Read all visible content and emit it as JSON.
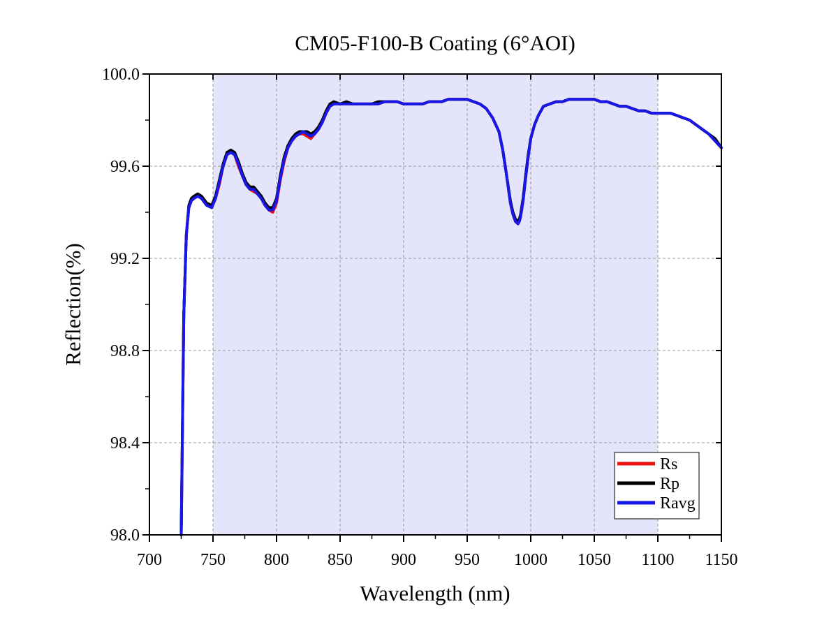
{
  "chart_data": {
    "type": "line",
    "title": "CM05-F100-B Coating (6°AOI)",
    "xlabel": "Wavelength (nm)",
    "ylabel": "Reflection(%)",
    "xlim": [
      700,
      1150
    ],
    "ylim": [
      98.0,
      100.0
    ],
    "xticks": [
      "700",
      "750",
      "800",
      "850",
      "900",
      "950",
      "1000",
      "1050",
      "1100",
      "1150"
    ],
    "yticks": [
      "98.0",
      "98.4",
      "98.8",
      "99.2",
      "99.6",
      "100.0"
    ],
    "grid": true,
    "highlight_band": {
      "x": [
        750,
        1100
      ],
      "color": "#e4e4fb"
    },
    "legend": {
      "position": "bottom-right"
    },
    "series": [
      {
        "name": "Rs",
        "color": "#ee1111",
        "x": [
          725,
          727,
          729,
          731,
          733,
          735,
          738,
          741,
          745,
          749,
          752,
          755,
          758,
          761,
          764,
          767,
          770,
          773,
          776,
          779,
          782,
          785,
          788,
          791,
          794,
          797,
          800,
          803,
          806,
          809,
          812,
          815,
          818,
          821,
          824,
          827,
          830,
          833,
          836,
          839,
          842,
          845,
          850,
          855,
          860,
          865,
          870,
          875,
          880,
          885,
          890,
          895,
          900,
          905,
          910,
          915,
          920,
          925,
          930,
          935,
          940,
          945,
          950,
          955,
          960,
          965,
          970,
          975,
          978,
          981,
          984,
          986,
          988,
          990,
          991,
          992,
          994,
          996,
          998,
          1000,
          1003,
          1006,
          1010,
          1015,
          1020,
          1025,
          1030,
          1035,
          1040,
          1045,
          1050,
          1055,
          1060,
          1065,
          1070,
          1075,
          1080,
          1085,
          1090,
          1095,
          1100,
          1105,
          1110,
          1115,
          1120,
          1125,
          1130,
          1135,
          1140,
          1145,
          1150
        ],
        "values": [
          98.0,
          98.95,
          99.3,
          99.42,
          99.45,
          99.46,
          99.47,
          99.46,
          99.43,
          99.42,
          99.46,
          99.52,
          99.6,
          99.65,
          99.66,
          99.65,
          99.6,
          99.56,
          99.52,
          99.5,
          99.49,
          99.48,
          99.46,
          99.43,
          99.41,
          99.4,
          99.44,
          99.54,
          99.62,
          99.68,
          99.71,
          99.73,
          99.74,
          99.74,
          99.73,
          99.72,
          99.74,
          99.76,
          99.79,
          99.83,
          99.86,
          99.87,
          99.87,
          99.87,
          99.87,
          99.87,
          99.87,
          99.87,
          99.87,
          99.88,
          99.88,
          99.88,
          99.87,
          99.87,
          99.87,
          99.87,
          99.88,
          99.88,
          99.88,
          99.89,
          99.89,
          99.89,
          99.89,
          99.88,
          99.87,
          99.85,
          99.81,
          99.75,
          99.67,
          99.56,
          99.44,
          99.39,
          99.36,
          99.35,
          99.36,
          99.38,
          99.45,
          99.55,
          99.64,
          99.72,
          99.78,
          99.82,
          99.86,
          99.87,
          99.88,
          99.88,
          99.89,
          99.89,
          99.89,
          99.89,
          99.89,
          99.88,
          99.88,
          99.87,
          99.86,
          99.86,
          99.85,
          99.84,
          99.84,
          99.83,
          99.83,
          99.83,
          99.83,
          99.82,
          99.81,
          99.8,
          99.78,
          99.76,
          99.74,
          99.71,
          99.68
        ]
      },
      {
        "name": "Rp",
        "color": "#000000",
        "x": [
          725,
          727,
          729,
          731,
          733,
          735,
          738,
          741,
          745,
          749,
          752,
          755,
          758,
          761,
          764,
          767,
          770,
          773,
          776,
          779,
          782,
          785,
          788,
          791,
          794,
          797,
          800,
          803,
          806,
          809,
          812,
          815,
          818,
          821,
          824,
          827,
          830,
          833,
          836,
          839,
          842,
          845,
          850,
          855,
          860,
          865,
          870,
          875,
          880,
          885,
          890,
          895,
          900,
          905,
          910,
          915,
          920,
          925,
          930,
          935,
          940,
          945,
          950,
          955,
          960,
          965,
          970,
          975,
          978,
          981,
          984,
          986,
          988,
          990,
          991,
          992,
          994,
          996,
          998,
          1000,
          1003,
          1006,
          1010,
          1015,
          1020,
          1025,
          1030,
          1035,
          1040,
          1045,
          1050,
          1055,
          1060,
          1065,
          1070,
          1075,
          1080,
          1085,
          1090,
          1095,
          1100,
          1105,
          1110,
          1115,
          1120,
          1125,
          1130,
          1135,
          1140,
          1145,
          1150
        ],
        "values": [
          98.0,
          98.95,
          99.3,
          99.43,
          99.46,
          99.47,
          99.48,
          99.47,
          99.44,
          99.43,
          99.47,
          99.54,
          99.61,
          99.66,
          99.67,
          99.66,
          99.62,
          99.57,
          99.53,
          99.51,
          99.51,
          99.49,
          99.47,
          99.44,
          99.42,
          99.42,
          99.46,
          99.56,
          99.64,
          99.69,
          99.72,
          99.74,
          99.75,
          99.75,
          99.75,
          99.74,
          99.75,
          99.77,
          99.8,
          99.84,
          99.87,
          99.88,
          99.87,
          99.88,
          99.87,
          99.87,
          99.87,
          99.87,
          99.88,
          99.88,
          99.88,
          99.88,
          99.87,
          99.87,
          99.87,
          99.87,
          99.88,
          99.88,
          99.88,
          99.89,
          99.89,
          99.89,
          99.89,
          99.88,
          99.87,
          99.85,
          99.81,
          99.75,
          99.67,
          99.56,
          99.45,
          99.4,
          99.37,
          99.36,
          99.37,
          99.39,
          99.46,
          99.56,
          99.65,
          99.72,
          99.78,
          99.82,
          99.86,
          99.87,
          99.88,
          99.88,
          99.89,
          99.89,
          99.89,
          99.89,
          99.89,
          99.88,
          99.88,
          99.87,
          99.86,
          99.86,
          99.85,
          99.84,
          99.84,
          99.83,
          99.83,
          99.83,
          99.83,
          99.82,
          99.81,
          99.8,
          99.78,
          99.76,
          99.74,
          99.72,
          99.68
        ]
      },
      {
        "name": "Ravg",
        "color": "#1717e8",
        "x": [
          725,
          727,
          729,
          731,
          733,
          735,
          738,
          741,
          745,
          749,
          752,
          755,
          758,
          761,
          764,
          767,
          770,
          773,
          776,
          779,
          782,
          785,
          788,
          791,
          794,
          797,
          800,
          803,
          806,
          809,
          812,
          815,
          818,
          821,
          824,
          827,
          830,
          833,
          836,
          839,
          842,
          845,
          850,
          855,
          860,
          865,
          870,
          875,
          880,
          885,
          890,
          895,
          900,
          905,
          910,
          915,
          920,
          925,
          930,
          935,
          940,
          945,
          950,
          955,
          960,
          965,
          970,
          975,
          978,
          981,
          984,
          986,
          988,
          990,
          991,
          992,
          994,
          996,
          998,
          1000,
          1003,
          1006,
          1010,
          1015,
          1020,
          1025,
          1030,
          1035,
          1040,
          1045,
          1050,
          1055,
          1060,
          1065,
          1070,
          1075,
          1080,
          1085,
          1090,
          1095,
          1100,
          1105,
          1110,
          1115,
          1120,
          1125,
          1130,
          1135,
          1140,
          1145,
          1150
        ],
        "values": [
          98.0,
          98.95,
          99.3,
          99.42,
          99.45,
          99.46,
          99.47,
          99.46,
          99.43,
          99.42,
          99.46,
          99.53,
          99.6,
          99.65,
          99.66,
          99.65,
          99.61,
          99.56,
          99.52,
          99.5,
          99.5,
          99.48,
          99.46,
          99.43,
          99.41,
          99.41,
          99.45,
          99.55,
          99.63,
          99.68,
          99.71,
          99.73,
          99.74,
          99.75,
          99.74,
          99.73,
          99.74,
          99.76,
          99.79,
          99.83,
          99.86,
          99.87,
          99.87,
          99.87,
          99.87,
          99.87,
          99.87,
          99.87,
          99.87,
          99.88,
          99.88,
          99.88,
          99.87,
          99.87,
          99.87,
          99.87,
          99.88,
          99.88,
          99.88,
          99.89,
          99.89,
          99.89,
          99.89,
          99.88,
          99.87,
          99.85,
          99.81,
          99.75,
          99.67,
          99.56,
          99.44,
          99.39,
          99.36,
          99.35,
          99.36,
          99.38,
          99.45,
          99.55,
          99.64,
          99.72,
          99.78,
          99.82,
          99.86,
          99.87,
          99.88,
          99.88,
          99.89,
          99.89,
          99.89,
          99.89,
          99.89,
          99.88,
          99.88,
          99.87,
          99.86,
          99.86,
          99.85,
          99.84,
          99.84,
          99.83,
          99.83,
          99.83,
          99.83,
          99.82,
          99.81,
          99.8,
          99.78,
          99.76,
          99.74,
          99.71,
          99.68
        ]
      }
    ]
  }
}
